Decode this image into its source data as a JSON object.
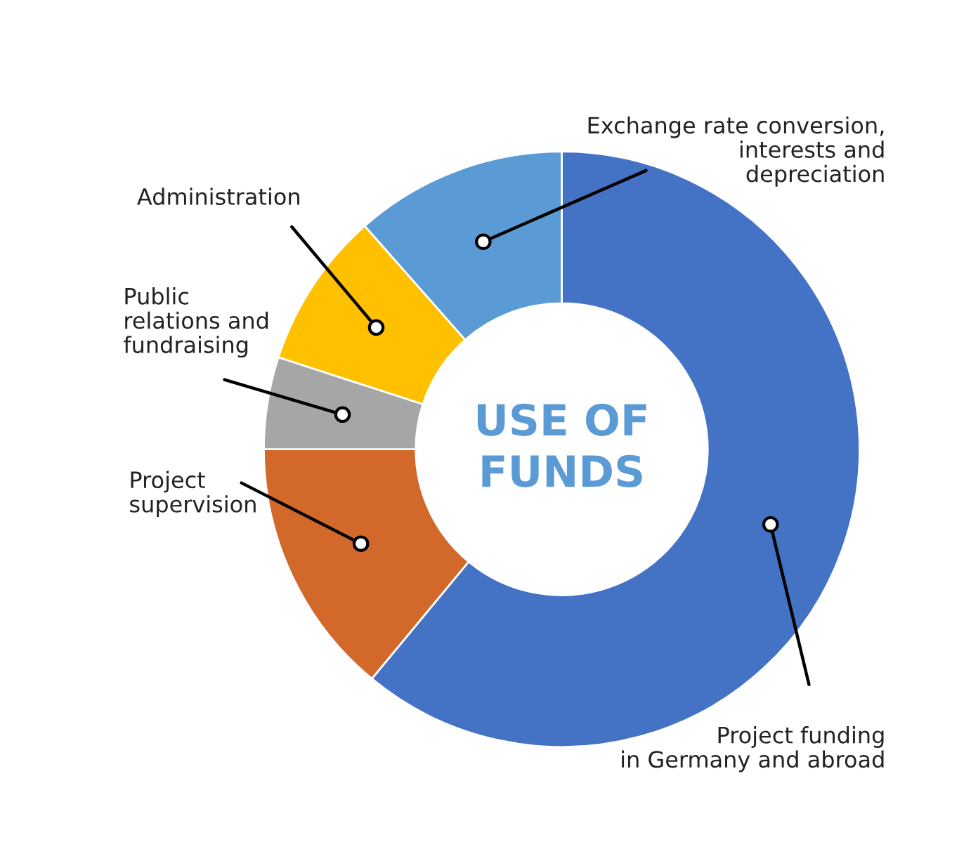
{
  "chart_data": {
    "type": "donut",
    "title": "USE OF\nFUNDS",
    "categories": [
      "Project funding\nin Germany and abroad",
      "Project\nsupervision",
      "Public\nrelations and\nfundraising",
      "Administration",
      "Exchange rate conversion,\ninterests and\ndepreciation"
    ],
    "values": [
      61,
      14,
      5,
      8.5,
      11.5
    ],
    "colors": [
      "#4472c4",
      "#d2692a",
      "#a6a6a6",
      "#ffc000",
      "#5b9bd5"
    ],
    "legend": false
  }
}
